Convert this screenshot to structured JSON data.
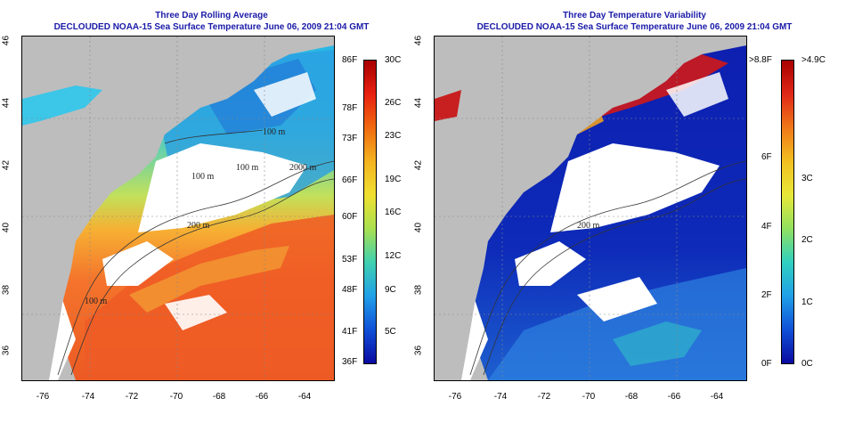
{
  "left": {
    "title_line1": "Three Day Rolling Average",
    "title_line2": "DECLOUDED NOAA-15 Sea Surface Temperature June 06, 2009 21:04 GMT",
    "fahrenheit_labels": [
      "86F",
      "78F",
      "73F",
      "66F",
      "60F",
      "53F",
      "48F",
      "41F",
      "36F"
    ],
    "celsius_labels": [
      "30C",
      "26C",
      "23C",
      "19C",
      "16C",
      "12C",
      "9C",
      "5C"
    ],
    "contour_labels": [
      "100 m",
      "100 m",
      "100 m",
      "2000 m",
      "200 m",
      "100 m"
    ]
  },
  "right": {
    "title_line1": "Three Day Temperature Variability",
    "title_line2": "DECLOUDED NOAA-15 Sea Surface Temperature June 06, 2009 21:04 GMT",
    "fahrenheit_labels": [
      ">8.8F",
      "6F",
      "4F",
      "2F",
      "0F"
    ],
    "celsius_labels": [
      ">4.9C",
      "3C",
      "2C",
      "1C",
      "0C"
    ],
    "contour_labels": [
      "200 m"
    ]
  },
  "axes": {
    "lat_labels": [
      "46",
      "44",
      "42",
      "40",
      "38",
      "36"
    ],
    "lon_labels": [
      "-76",
      "-74",
      "-72",
      "-70",
      "-68",
      "-66",
      "-64"
    ]
  },
  "colors": {
    "title": "#1a1aa8",
    "land": "#bdbdbd",
    "cloud": "#ffffff"
  }
}
